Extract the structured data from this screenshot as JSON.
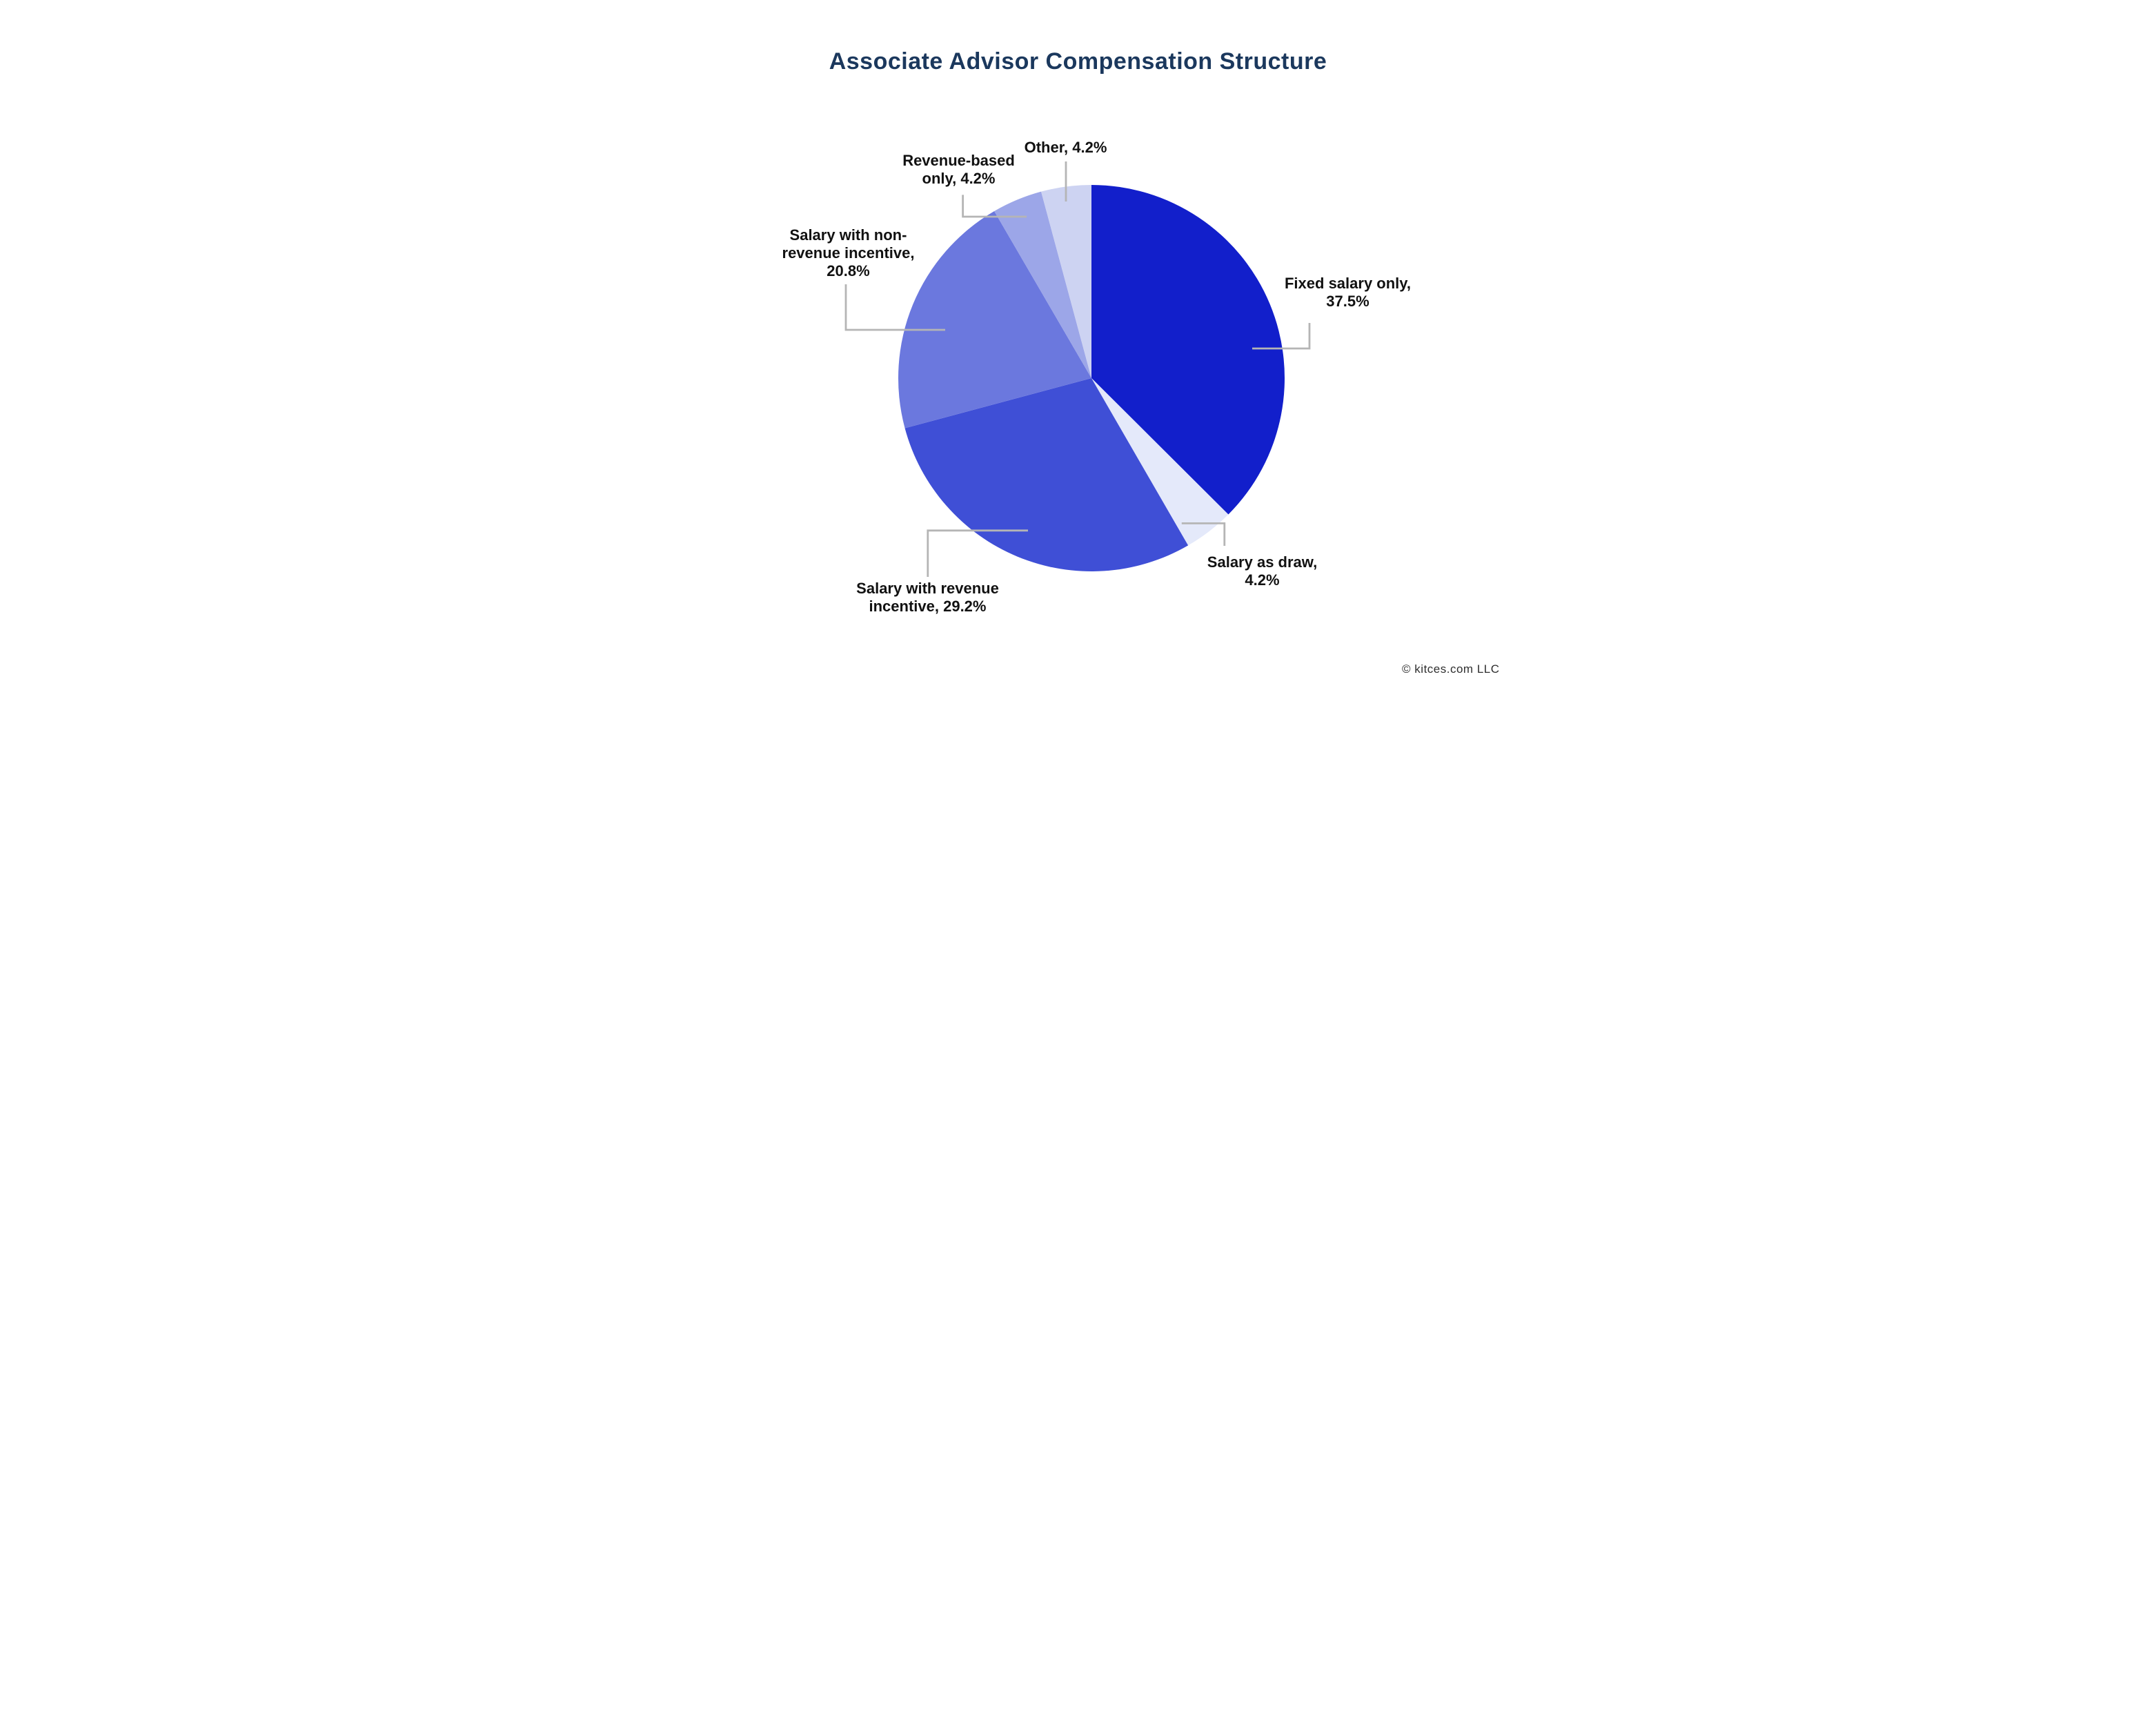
{
  "title": "Associate Advisor Compensation Structure",
  "footer": {
    "copyright": "© kitces.com LLC"
  },
  "colors": {
    "title": "#1b385d",
    "label": "#111111",
    "leader": "#b5b5b5",
    "background": "#ffffff"
  },
  "chart_data": {
    "type": "pie",
    "title": "Associate Advisor Compensation Structure",
    "start_angle_deg": 0,
    "direction": "clockwise",
    "legend_position": "none",
    "slices": [
      {
        "label": "Fixed salary only",
        "value": 37.5,
        "display": "Fixed salary only, 37.5%",
        "color": "#121fcb"
      },
      {
        "label": "Salary as draw",
        "value": 4.2,
        "display": "Salary as draw, 4.2%",
        "color": "#e4e9fa"
      },
      {
        "label": "Salary with revenue incentive",
        "value": 29.2,
        "display": "Salary with revenue incentive, 29.2%",
        "color": "#3f4fd6"
      },
      {
        "label": "Salary with non-revenue incentive",
        "value": 20.8,
        "display": "Salary with non-revenue incentive, 20.8%",
        "color": "#6b78de"
      },
      {
        "label": "Revenue-based only",
        "value": 4.2,
        "display": "Revenue-based only, 4.2%",
        "color": "#9ca6e8"
      },
      {
        "label": "Other",
        "value": 4.2,
        "display": "Other, 4.2%",
        "color": "#cdd3f2"
      }
    ]
  },
  "callouts": {
    "other": {
      "lines": [
        "Other, 4.2%"
      ]
    },
    "revenue_based": {
      "lines": [
        "Revenue-based",
        "only, 4.2%"
      ]
    },
    "non_revenue": {
      "lines": [
        "Salary with non-",
        "revenue incentive,",
        "20.8%"
      ]
    },
    "fixed_salary": {
      "lines": [
        "Fixed salary only,",
        "37.5%"
      ]
    },
    "salary_as_draw": {
      "lines": [
        "Salary as draw,",
        "4.2%"
      ]
    },
    "revenue_incentive": {
      "lines": [
        "Salary with revenue",
        "incentive, 29.2%"
      ]
    }
  }
}
